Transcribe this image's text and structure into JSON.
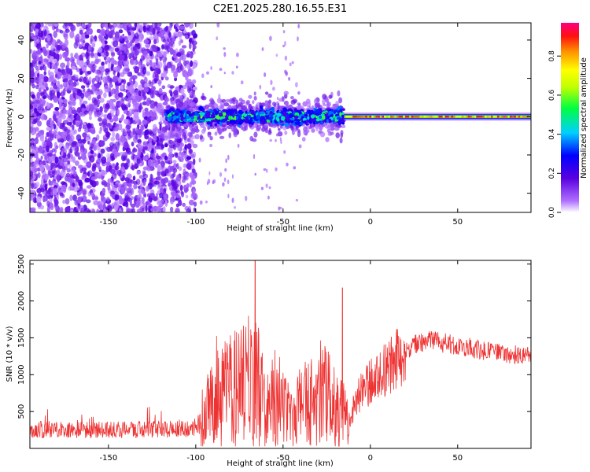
{
  "title": "C2E1.2025.280.16.55.E31",
  "chart_data": [
    {
      "type": "heatmap",
      "title": "C2E1.2025.280.16.55.E31",
      "xlabel": "Height of straight line (km)",
      "ylabel": "Frequency (Hz)",
      "xlim": [
        -195,
        92
      ],
      "ylim": [
        -50,
        49
      ],
      "xticks": [
        -150,
        -100,
        -50,
        0,
        50
      ],
      "xtick_labels": [
        "-150",
        "-100",
        "-50",
        "0",
        "50"
      ],
      "yticks": [
        -40,
        -20,
        0,
        20,
        40
      ],
      "ytick_labels": [
        "-40",
        "-20",
        "0",
        "20",
        "40"
      ],
      "colorbar": {
        "label": "Normalized spectral amplitude",
        "range": [
          0,
          0.97
        ],
        "ticks": [
          0,
          0.2,
          0.4,
          0.6,
          0.8
        ],
        "tick_labels": [
          "0.0",
          "0.2",
          "0.4",
          "0.6",
          "0.8"
        ],
        "colors": [
          "#ffffff",
          "#7a00ff",
          "#0000ff",
          "#00e0ff",
          "#00ff00",
          "#ffff00",
          "#ff8000",
          "#ff0000",
          "#ff00a0"
        ]
      },
      "regions": [
        {
          "name": "scattered noise",
          "x_range": [
            -195,
            -100
          ],
          "freq_range": [
            -50,
            49
          ],
          "amplitude": 0.12
        },
        {
          "name": "turbulent band",
          "x_range": [
            -117,
            -15
          ],
          "freq_range": [
            -6,
            6
          ],
          "amplitude": 0.3
        },
        {
          "name": "narrow tone",
          "x_range": [
            -15,
            92
          ],
          "freq_range": [
            -1.5,
            1.5
          ],
          "amplitude": 0.9
        }
      ]
    },
    {
      "type": "line",
      "xlabel": "Height of straight line (km)",
      "ylabel": "SNR (10 * v/v)",
      "xlim": [
        -195,
        92
      ],
      "ylim": [
        0,
        2550
      ],
      "xticks": [
        -150,
        -100,
        -50,
        0,
        50
      ],
      "xtick_labels": [
        "-150",
        "-100",
        "-50",
        "0",
        "50"
      ],
      "yticks": [
        500,
        1000,
        1500,
        2000,
        2500
      ],
      "ytick_labels": [
        "500",
        "1000",
        "1500",
        "2000",
        "2500"
      ],
      "series_color": "#ee3333",
      "series": [
        {
          "name": "SNR",
          "x": [
            -195,
            -180,
            -160,
            -140,
            -120,
            -100,
            -92,
            -85,
            -78,
            -72,
            -67,
            -62,
            -56,
            -50,
            -44,
            -38,
            -32,
            -26,
            -20,
            -16,
            -12,
            -8,
            -4,
            0,
            5,
            10,
            15,
            20,
            25,
            30,
            35,
            40,
            50,
            60,
            70,
            80,
            92
          ],
          "values": [
            250,
            260,
            250,
            250,
            260,
            280,
            550,
            750,
            800,
            850,
            1050,
            700,
            650,
            550,
            500,
            650,
            600,
            700,
            650,
            500,
            350,
            700,
            800,
            900,
            1000,
            1100,
            1200,
            1300,
            1400,
            1450,
            1450,
            1450,
            1400,
            1350,
            1300,
            1280,
            1250
          ]
        }
      ],
      "annotations": [
        {
          "x": -66,
          "value": 2550,
          "label": "peak"
        },
        {
          "x": -16,
          "value": 2180,
          "label": "spike"
        }
      ]
    }
  ]
}
